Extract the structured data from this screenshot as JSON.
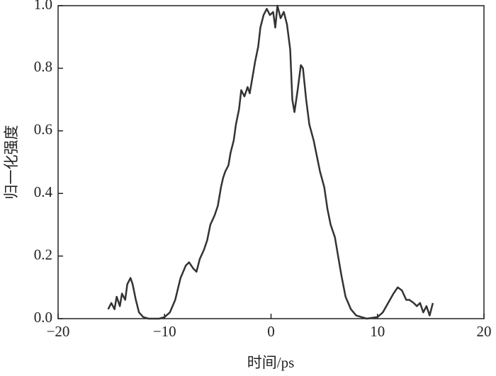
{
  "chart_data": {
    "type": "line",
    "xlabel": "时间/ps",
    "ylabel": "归一化强度",
    "xlim": [
      -20,
      20
    ],
    "ylim": [
      0,
      1.0
    ],
    "xticks": [
      {
        "value": -20,
        "label": "−20"
      },
      {
        "value": -10,
        "label": "−10"
      },
      0,
      10,
      20
    ],
    "yticks": [
      {
        "value": 0,
        "label": "0.0"
      },
      0.2,
      0.4,
      0.6,
      0.8,
      {
        "value": 1.0,
        "label": "1.0"
      }
    ],
    "series": [
      {
        "color": "#333333",
        "x": [
          -15.3,
          -15,
          -14.7,
          -14.5,
          -14.2,
          -14,
          -13.7,
          -13.5,
          -13.2,
          -13,
          -12.7,
          -12.4,
          -12,
          -11.5,
          -10.5,
          -10,
          -9.5,
          -9,
          -8.5,
          -8,
          -7.7,
          -7.3,
          -7,
          -6.7,
          -6.3,
          -6,
          -5.7,
          -5.3,
          -5,
          -4.7,
          -4.5,
          -4.3,
          -4,
          -3.8,
          -3.5,
          -3.3,
          -3,
          -2.8,
          -2.5,
          -2.2,
          -2,
          -1.7,
          -1.5,
          -1.2,
          -1,
          -0.7,
          -0.4,
          -0.1,
          0.2,
          0.4,
          0.6,
          0.9,
          1.2,
          1.5,
          1.8,
          2,
          2.2,
          2.5,
          2.8,
          3,
          3.3,
          3.6,
          4,
          4.3,
          4.6,
          5,
          5.3,
          5.6,
          6,
          6.3,
          6.6,
          7,
          7.5,
          8,
          9,
          10,
          10.5,
          11,
          11.5,
          11.9,
          12.3,
          12.7,
          13,
          13.4,
          13.7,
          14,
          14.3,
          14.6,
          14.9,
          15.2
        ],
        "values": [
          0.03,
          0.05,
          0.03,
          0.07,
          0.04,
          0.08,
          0.06,
          0.11,
          0.13,
          0.11,
          0.06,
          0.02,
          0.005,
          0,
          0,
          0.005,
          0.02,
          0.06,
          0.13,
          0.17,
          0.18,
          0.16,
          0.15,
          0.19,
          0.22,
          0.25,
          0.3,
          0.33,
          0.36,
          0.42,
          0.45,
          0.47,
          0.49,
          0.53,
          0.57,
          0.62,
          0.67,
          0.73,
          0.71,
          0.74,
          0.72,
          0.78,
          0.82,
          0.87,
          0.93,
          0.97,
          0.99,
          0.97,
          0.98,
          0.93,
          1.0,
          0.96,
          0.98,
          0.94,
          0.86,
          0.7,
          0.66,
          0.73,
          0.81,
          0.8,
          0.7,
          0.62,
          0.57,
          0.52,
          0.47,
          0.42,
          0.35,
          0.3,
          0.26,
          0.2,
          0.14,
          0.07,
          0.03,
          0.01,
          0,
          0.005,
          0.02,
          0.05,
          0.08,
          0.1,
          0.09,
          0.06,
          0.06,
          0.05,
          0.04,
          0.05,
          0.02,
          0.04,
          0.01,
          0.05
        ]
      }
    ]
  }
}
